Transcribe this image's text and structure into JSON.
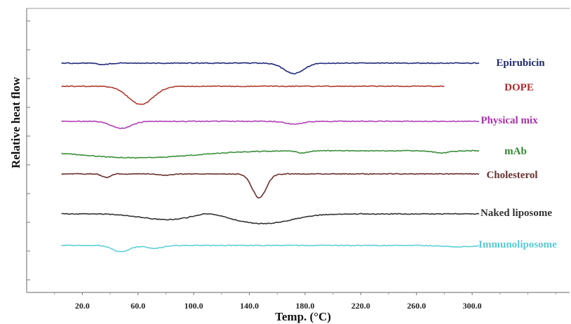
{
  "chart_data": {
    "type": "line",
    "xlabel": "Temp. (°C)",
    "ylabel": "Relative heat flow",
    "xlim": [
      -20,
      370
    ],
    "x_ticks": [
      20,
      60,
      100,
      140,
      180,
      220,
      260,
      300
    ],
    "x_tick_labels": [
      "20.0",
      "60.0",
      "100.0",
      "140.0",
      "180.0",
      "220.0",
      "260.0",
      "300.0"
    ],
    "grid": false,
    "legend": "labels at right end of each curve",
    "series": [
      {
        "name": "Epirubicin",
        "color": "#1f2a7a",
        "label_color": "#1f2a6e",
        "x_range": [
          5,
          305
        ],
        "dips": [
          {
            "x": 35,
            "depth": 2,
            "width": 4
          },
          {
            "x": 172,
            "depth": 15,
            "width": 7
          }
        ]
      },
      {
        "name": "DOPE",
        "color": "#b03a2e",
        "label_color": "#a52a2a",
        "x_range": [
          5,
          280
        ],
        "dips": [
          {
            "x": 62,
            "depth": 26,
            "width": 9
          }
        ]
      },
      {
        "name": "Physical mix",
        "color": "#b23fb8",
        "label_color": "#a72fa8",
        "x_range": [
          5,
          305
        ],
        "dips": [
          {
            "x": 48,
            "depth": 10,
            "width": 7
          },
          {
            "x": 172,
            "depth": 4,
            "width": 6
          }
        ]
      },
      {
        "name": "mAb",
        "color": "#3a8f3a",
        "label_color": "#2f8a2f",
        "x_range": [
          5,
          305
        ],
        "dips": [
          {
            "x": 60,
            "depth": 10,
            "width": 40
          },
          {
            "x": 178,
            "depth": 3,
            "width": 4
          },
          {
            "x": 278,
            "depth": 3,
            "width": 6
          }
        ]
      },
      {
        "name": "Cholesterol",
        "color": "#6b2f2f",
        "label_color": "#6a3030",
        "x_range": [
          5,
          305
        ],
        "dips": [
          {
            "x": 37,
            "depth": 5,
            "width": 3
          },
          {
            "x": 80,
            "depth": 2,
            "width": 4
          },
          {
            "x": 147,
            "depth": 34,
            "width": 5
          }
        ]
      },
      {
        "name": "Naked liposome",
        "color": "#333333",
        "label_color": "#333333",
        "x_range": [
          5,
          305
        ],
        "dips": [
          {
            "x": 80,
            "depth": 8,
            "width": 18
          },
          {
            "x": 110,
            "depth": -4,
            "width": 8
          },
          {
            "x": 150,
            "depth": 14,
            "width": 20
          }
        ]
      },
      {
        "name": "Immunoliposome",
        "color": "#5fd0d8",
        "label_color": "#59c9d3",
        "x_range": [
          5,
          305
        ],
        "dips": [
          {
            "x": 48,
            "depth": 9,
            "width": 6
          },
          {
            "x": 72,
            "depth": 4,
            "width": 6
          },
          {
            "x": 290,
            "depth": 2,
            "width": 10
          }
        ]
      }
    ]
  }
}
